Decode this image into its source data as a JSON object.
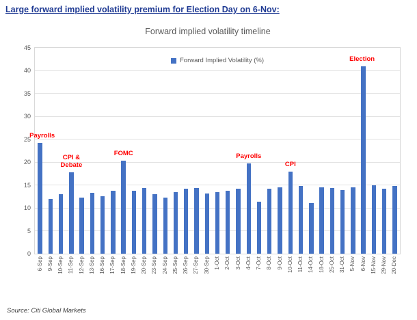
{
  "page": {
    "heading": "Large forward implied volatility premium for Election Day on 6-Nov:",
    "heading_color": "#1F3A93",
    "source": "Source: Citi Global Markets"
  },
  "chart_data": {
    "type": "bar",
    "title": "Forward implied volatility timeline",
    "legend": "Forward Implied Volatility (%)",
    "ylim": [
      0,
      45
    ],
    "ytick_step": 5,
    "bar_color": "#4472C4",
    "annotation_color": "#FF0000",
    "categories": [
      "6-Sep",
      "9-Sep",
      "10-Sep",
      "11-Sep",
      "12-Sep",
      "13-Sep",
      "16-Sep",
      "17-Sep",
      "18-Sep",
      "19-Sep",
      "20-Sep",
      "23-Sep",
      "24-Sep",
      "25-Sep",
      "26-Sep",
      "27-Sep",
      "30-Sep",
      "1-Oct",
      "2-Oct",
      "3-Oct",
      "4-Oct",
      "7-Oct",
      "8-Oct",
      "9-Oct",
      "10-Oct",
      "11-Oct",
      "14-Oct",
      "18-Oct",
      "25-Oct",
      "31-Oct",
      "5-Nov",
      "6-Nov",
      "15-Nov",
      "29-Nov",
      "20-Dec"
    ],
    "values": [
      24.2,
      12.0,
      13.0,
      17.8,
      12.2,
      13.3,
      12.5,
      13.7,
      20.3,
      13.7,
      14.4,
      13.0,
      12.2,
      13.5,
      14.2,
      14.3,
      13.1,
      13.5,
      13.7,
      14.2,
      19.7,
      11.4,
      14.2,
      14.5,
      17.9,
      14.8,
      11.0,
      14.5,
      14.4,
      13.9,
      14.5,
      41.0,
      15.0,
      14.2,
      14.8
    ],
    "annotations": [
      {
        "label": "Payrolls",
        "category": "6-Sep",
        "dx": 3,
        "dy": 1
      },
      {
        "label": "CPI &\nDebate",
        "category": "11-Sep",
        "dx": 0,
        "dy": 1
      },
      {
        "label": "FOMC",
        "category": "18-Sep",
        "dx": 0,
        "dy": 1
      },
      {
        "label": "Payrolls",
        "category": "4-Oct",
        "dx": 0,
        "dy": 1
      },
      {
        "label": "CPI",
        "category": "10-Oct",
        "dx": 0,
        "dy": 1
      },
      {
        "label": "Election",
        "category": "6-Nov",
        "dx": -2,
        "dy": 1
      }
    ]
  }
}
